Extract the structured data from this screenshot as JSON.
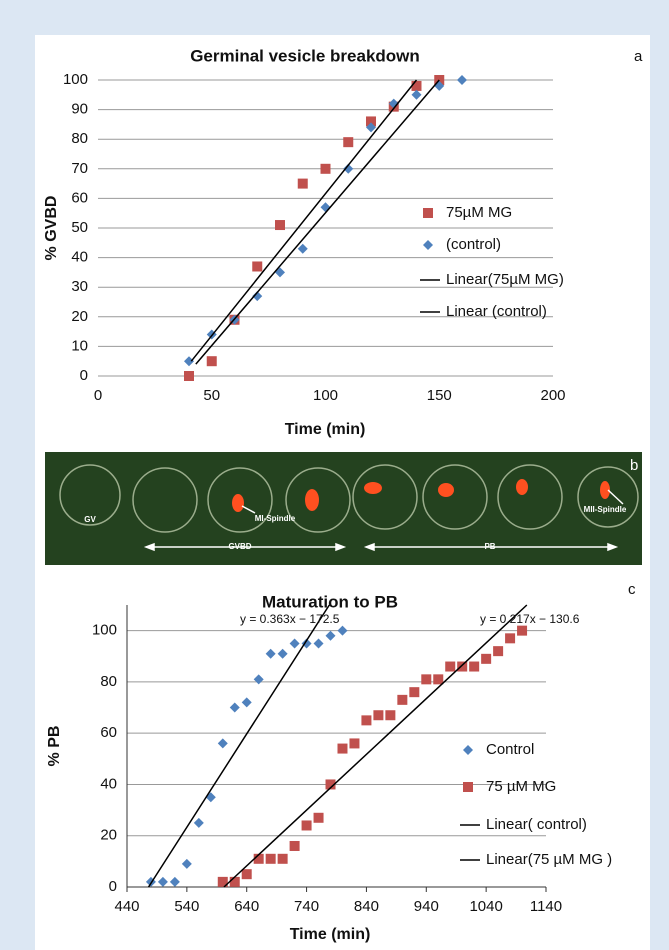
{
  "panel_labels": [
    "a",
    "b",
    "c"
  ],
  "image_labels": {
    "gv": "GV",
    "mi": "MI-Spindle",
    "gvbd": "GVBD",
    "pb": "PB",
    "mii": "MII-Spindle"
  },
  "chart_data": [
    {
      "type": "scatter",
      "title": "Germinal vesicle breakdown",
      "xlabel": "Time (min)",
      "ylabel": "% GVBD",
      "xlim": [
        0,
        200
      ],
      "ylim": [
        0,
        100
      ],
      "xticks": [
        0,
        50,
        100,
        150,
        200
      ],
      "yticks": [
        0,
        10,
        20,
        30,
        40,
        50,
        60,
        70,
        80,
        90,
        100
      ],
      "grid": true,
      "series": [
        {
          "name": "75µM MG",
          "color": "#c0504d",
          "marker": "square",
          "x": [
            40,
            50,
            60,
            70,
            80,
            90,
            100,
            110,
            120,
            130,
            140,
            150
          ],
          "values": [
            0,
            5,
            19,
            37,
            51,
            65,
            70,
            79,
            86,
            91,
            98,
            100
          ]
        },
        {
          "name": "(control)",
          "color": "#4f81bd",
          "marker": "diamond",
          "x": [
            40,
            50,
            60,
            70,
            80,
            90,
            100,
            110,
            120,
            130,
            140,
            150,
            160
          ],
          "values": [
            5,
            14,
            19,
            27,
            35,
            43,
            57,
            70,
            84,
            92,
            95,
            98,
            100
          ]
        },
        {
          "name": "Linear(75µM MG)",
          "color": "#000000",
          "marker": "line",
          "x": [
            41,
            140
          ],
          "values": [
            5,
            100
          ]
        },
        {
          "name": "Linear  (control)",
          "color": "#000000",
          "marker": "line",
          "x": [
            43,
            150
          ],
          "values": [
            4,
            100
          ]
        }
      ],
      "annotations": []
    },
    {
      "type": "scatter",
      "title": "Maturation to PB",
      "xlabel": "Time (min)",
      "ylabel": "% PB",
      "xlim": [
        440,
        1140
      ],
      "ylim": [
        0,
        110
      ],
      "xticks": [
        440,
        540,
        640,
        740,
        840,
        940,
        1040,
        1140
      ],
      "yticks": [
        0,
        20,
        40,
        60,
        80,
        100
      ],
      "grid": true,
      "series": [
        {
          "name": "Control",
          "color": "#4f81bd",
          "marker": "diamond",
          "x": [
            480,
            500,
            520,
            540,
            560,
            580,
            600,
            620,
            640,
            660,
            680,
            700,
            720,
            740,
            760,
            780,
            800
          ],
          "values": [
            2,
            2,
            2,
            9,
            25,
            35,
            56,
            70,
            72,
            81,
            91,
            91,
            95,
            95,
            95,
            98,
            100
          ]
        },
        {
          "name": "75 µM MG",
          "color": "#c0504d",
          "marker": "square",
          "x": [
            600,
            620,
            640,
            660,
            680,
            700,
            720,
            740,
            760,
            780,
            800,
            820,
            840,
            860,
            880,
            900,
            920,
            940,
            960,
            980,
            1000,
            1020,
            1040,
            1060,
            1080,
            1100
          ],
          "values": [
            2,
            2,
            5,
            11,
            11,
            11,
            16,
            24,
            27,
            40,
            54,
            56,
            65,
            67,
            67,
            73,
            76,
            81,
            81,
            86,
            86,
            86,
            89,
            92,
            97,
            100
          ]
        },
        {
          "name": "Linear( control)",
          "color": "#000000",
          "marker": "line",
          "x": [
            476,
            778
          ],
          "values": [
            0,
            110
          ]
        },
        {
          "name": "Linear(75 µM MG )",
          "color": "#000000",
          "marker": "line",
          "x": [
            602,
            1108
          ],
          "values": [
            0,
            110
          ]
        }
      ],
      "annotations": [
        "y = 0.363x − 172.5",
        "y = 0.217x − 130.6"
      ]
    }
  ]
}
